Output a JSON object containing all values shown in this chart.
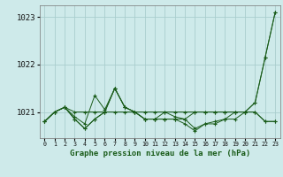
{
  "background_color": "#ceeaea",
  "grid_color": "#aacece",
  "line_color": "#1a5c1a",
  "title": "Graphe pression niveau de la mer (hPa)",
  "ylabel_values": [
    1021,
    1022,
    1023
  ],
  "xlim": [
    -0.5,
    23.5
  ],
  "ylim": [
    1020.45,
    1023.25
  ],
  "x": [
    0,
    1,
    2,
    3,
    4,
    5,
    6,
    7,
    8,
    9,
    10,
    11,
    12,
    13,
    14,
    15,
    16,
    17,
    18,
    19,
    20,
    21,
    22,
    23
  ],
  "s1": [
    1020.8,
    1021.0,
    1021.1,
    1021.0,
    1021.0,
    1021.0,
    1021.0,
    1021.0,
    1021.0,
    1021.0,
    1021.0,
    1021.0,
    1021.0,
    1021.0,
    1021.0,
    1021.0,
    1021.0,
    1021.0,
    1021.0,
    1021.0,
    1021.0,
    1021.2,
    1022.15,
    1023.1
  ],
  "s2": [
    1020.8,
    1021.0,
    1021.1,
    1020.9,
    1020.75,
    1021.35,
    1021.05,
    1021.5,
    1021.1,
    1021.0,
    1020.85,
    1020.85,
    1021.0,
    1020.9,
    1020.85,
    1021.0,
    1021.0,
    1021.0,
    1021.0,
    1021.0,
    1021.0,
    1021.2,
    1022.15,
    1023.1
  ],
  "s3": [
    1020.8,
    1021.0,
    1021.1,
    1020.85,
    1020.65,
    1020.85,
    1021.0,
    1021.5,
    1021.1,
    1021.0,
    1020.85,
    1020.85,
    1020.85,
    1020.85,
    1020.85,
    1020.65,
    1020.75,
    1020.75,
    1020.85,
    1020.85,
    1021.0,
    1021.0,
    1020.8,
    1020.8
  ],
  "s4": [
    1020.8,
    1021.0,
    1021.1,
    1020.85,
    1020.65,
    1020.85,
    1021.0,
    1021.5,
    1021.1,
    1021.0,
    1020.85,
    1020.85,
    1020.85,
    1020.85,
    1020.75,
    1020.6,
    1020.75,
    1020.8,
    1020.85,
    1021.0,
    1021.0,
    1021.0,
    1020.8,
    1020.8
  ]
}
